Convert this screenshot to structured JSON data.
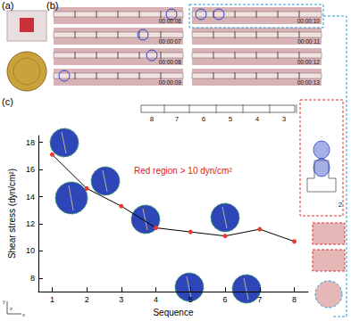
{
  "panel_labels": [
    "(a)",
    "(b)",
    "(c)"
  ],
  "timestamps": [
    "00:00:06",
    "00:00:07",
    "00:00:08",
    "00:00:09",
    "00:00:10",
    "00:00:11",
    "00:00:12",
    "00:00:13"
  ],
  "schematic": {
    "channel_numbers": [
      "8",
      "7",
      "6",
      "5",
      "4",
      "3"
    ],
    "inset_number": "2"
  },
  "axes_triad": [
    "y",
    "z",
    "x"
  ],
  "chart_data": {
    "type": "line",
    "x": [
      1,
      2,
      3,
      4,
      5,
      6,
      7,
      8
    ],
    "values": [
      17.1,
      14.6,
      13.3,
      11.7,
      11.4,
      11.1,
      11.6,
      10.7
    ],
    "color": "#e8392e",
    "marker": "circle",
    "xlabel": "Sequence",
    "ylabel": "Shear stress (dyn/cm²)",
    "annotation": "Red region > 10 dyn/cm²",
    "xlim": [
      0.6,
      8.4
    ],
    "xticks": [
      1,
      2,
      3,
      4,
      5,
      6,
      7,
      8
    ],
    "ylim": [
      7,
      18.5
    ],
    "yticks": [
      8,
      10,
      12,
      14,
      16,
      18
    ],
    "grid": false
  }
}
